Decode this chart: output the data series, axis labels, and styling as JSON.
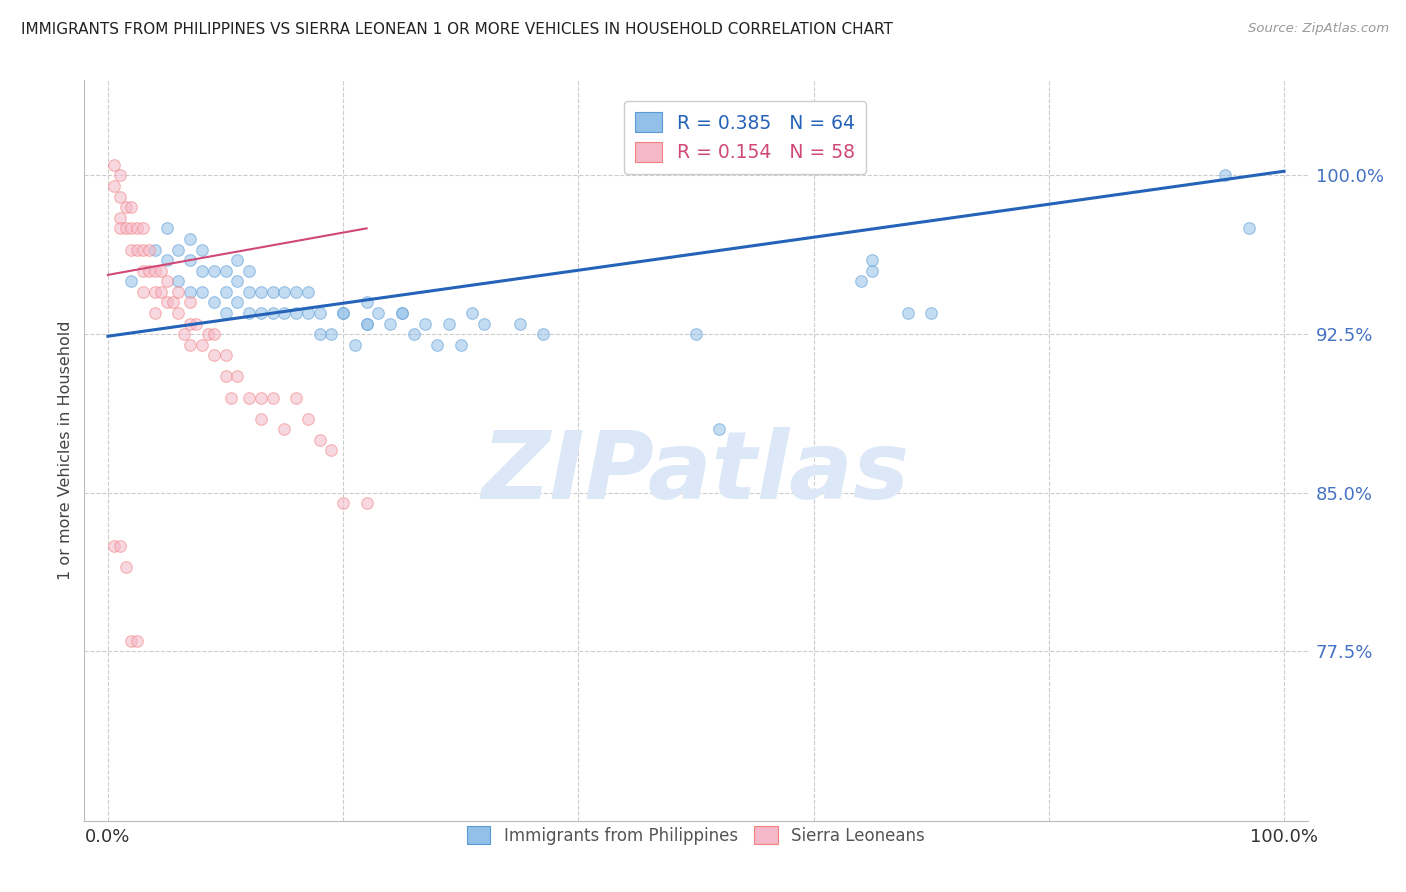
{
  "title": "IMMIGRANTS FROM PHILIPPINES VS SIERRA LEONEAN 1 OR MORE VEHICLES IN HOUSEHOLD CORRELATION CHART",
  "source": "Source: ZipAtlas.com",
  "ylabel": "1 or more Vehicles in Household",
  "title_color": "#222222",
  "source_color": "#999999",
  "ytick_color": "#4472c4",
  "ytick_labels": [
    "77.5%",
    "85.0%",
    "92.5%",
    "100.0%"
  ],
  "ytick_values": [
    0.775,
    0.85,
    0.925,
    1.0
  ],
  "xlim": [
    -0.02,
    1.02
  ],
  "ylim": [
    0.695,
    1.045
  ],
  "grid_color": "#cccccc",
  "watermark": "ZIPatlas",
  "watermark_color": "#dce8f8",
  "blue_scatter_x": [
    0.02,
    0.04,
    0.05,
    0.05,
    0.06,
    0.06,
    0.07,
    0.07,
    0.07,
    0.08,
    0.08,
    0.08,
    0.09,
    0.09,
    0.1,
    0.1,
    0.1,
    0.11,
    0.11,
    0.11,
    0.12,
    0.12,
    0.12,
    0.13,
    0.13,
    0.14,
    0.14,
    0.15,
    0.15,
    0.16,
    0.16,
    0.17,
    0.17,
    0.18,
    0.18,
    0.19,
    0.2,
    0.21,
    0.22,
    0.22,
    0.24,
    0.25,
    0.26,
    0.27,
    0.28,
    0.29,
    0.3,
    0.31,
    0.32,
    0.35,
    0.37,
    0.5,
    0.52,
    0.65,
    0.68,
    0.7,
    0.95,
    0.97,
    0.64,
    0.65,
    0.2,
    0.22,
    0.23,
    0.25
  ],
  "blue_scatter_y": [
    0.95,
    0.965,
    0.96,
    0.975,
    0.95,
    0.965,
    0.945,
    0.96,
    0.97,
    0.945,
    0.955,
    0.965,
    0.94,
    0.955,
    0.935,
    0.945,
    0.955,
    0.94,
    0.95,
    0.96,
    0.935,
    0.945,
    0.955,
    0.935,
    0.945,
    0.935,
    0.945,
    0.935,
    0.945,
    0.935,
    0.945,
    0.935,
    0.945,
    0.925,
    0.935,
    0.925,
    0.935,
    0.92,
    0.93,
    0.94,
    0.93,
    0.935,
    0.925,
    0.93,
    0.92,
    0.93,
    0.92,
    0.935,
    0.93,
    0.93,
    0.925,
    0.925,
    0.88,
    0.955,
    0.935,
    0.935,
    1.0,
    0.975,
    0.95,
    0.96,
    0.935,
    0.93,
    0.935,
    0.935
  ],
  "pink_scatter_x": [
    0.005,
    0.005,
    0.01,
    0.01,
    0.01,
    0.01,
    0.015,
    0.015,
    0.02,
    0.02,
    0.02,
    0.025,
    0.025,
    0.03,
    0.03,
    0.03,
    0.03,
    0.035,
    0.035,
    0.04,
    0.04,
    0.04,
    0.045,
    0.045,
    0.05,
    0.05,
    0.055,
    0.06,
    0.06,
    0.065,
    0.07,
    0.07,
    0.07,
    0.075,
    0.08,
    0.085,
    0.09,
    0.09,
    0.1,
    0.1,
    0.105,
    0.11,
    0.12,
    0.13,
    0.13,
    0.14,
    0.15,
    0.16,
    0.17,
    0.18,
    0.19,
    0.2,
    0.22,
    0.005,
    0.01,
    0.015,
    0.02,
    0.025
  ],
  "pink_scatter_y": [
    1.005,
    0.995,
    1.0,
    0.99,
    0.98,
    0.975,
    0.985,
    0.975,
    0.985,
    0.975,
    0.965,
    0.975,
    0.965,
    0.975,
    0.965,
    0.955,
    0.945,
    0.965,
    0.955,
    0.955,
    0.945,
    0.935,
    0.955,
    0.945,
    0.95,
    0.94,
    0.94,
    0.945,
    0.935,
    0.925,
    0.94,
    0.93,
    0.92,
    0.93,
    0.92,
    0.925,
    0.925,
    0.915,
    0.915,
    0.905,
    0.895,
    0.905,
    0.895,
    0.895,
    0.885,
    0.895,
    0.88,
    0.895,
    0.885,
    0.875,
    0.87,
    0.845,
    0.845,
    0.825,
    0.825,
    0.815,
    0.78,
    0.78
  ],
  "blue_line_x0": 0.0,
  "blue_line_x1": 1.0,
  "blue_line_y0": 0.924,
  "blue_line_y1": 1.002,
  "pink_line_x0": 0.0,
  "pink_line_x1": 0.22,
  "pink_line_y0": 0.953,
  "pink_line_y1": 0.975,
  "blue_color": "#92c0e8",
  "pink_color": "#f4b8c8",
  "blue_fill": "#5b9bd5",
  "pink_fill": "#f48080",
  "blue_line_color": "#2563b8",
  "pink_line_color": "#d04878",
  "scatter_size": 70,
  "scatter_alpha": 0.55,
  "legend_r_blue": "R = 0.385",
  "legend_n_blue": "N = 64",
  "legend_r_pink": "R = 0.154",
  "legend_n_pink": "N = 58",
  "legend_labels_bottom": [
    "Immigrants from Philippines",
    "Sierra Leoneans"
  ]
}
